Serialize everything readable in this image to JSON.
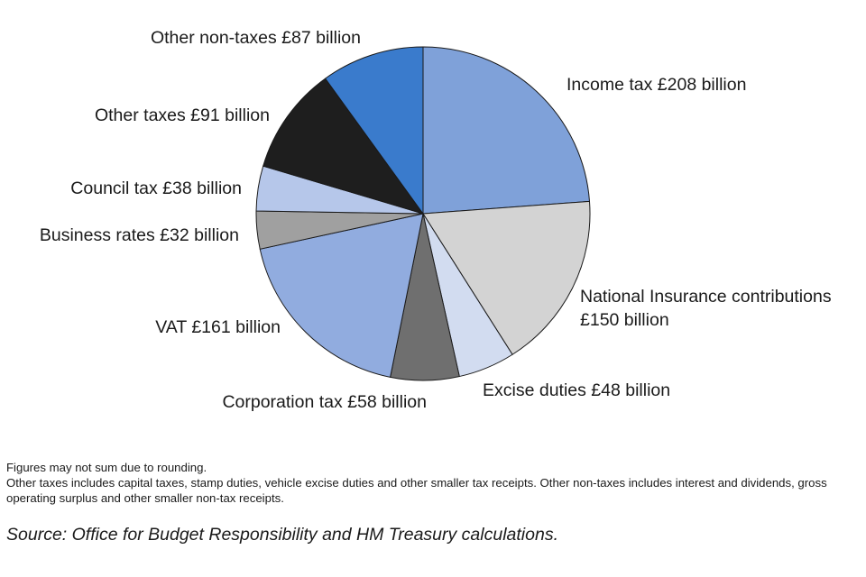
{
  "chart_data": {
    "type": "pie",
    "title": "",
    "unit": "£ billion",
    "slices": [
      {
        "label": "Income tax £208 billion",
        "value": 208,
        "color": "#7fa1d9"
      },
      {
        "label": "National Insurance contributions",
        "label_line2": "£150 billion",
        "value": 150,
        "color": "#d3d3d3"
      },
      {
        "label": "Excise duties £48 billion",
        "value": 48,
        "color": "#d2dcf0"
      },
      {
        "label": "Corporation tax £58 billion",
        "value": 58,
        "color": "#6f6f6f"
      },
      {
        "label": "VAT £161 billion",
        "value": 161,
        "color": "#91acdf"
      },
      {
        "label": "Business rates £32 billion",
        "value": 32,
        "color": "#a0a0a0"
      },
      {
        "label": "Council tax £38 billion",
        "value": 38,
        "color": "#b6c7ea"
      },
      {
        "label": "Other taxes £91 billion",
        "value": 91,
        "color": "#1e1e1e"
      },
      {
        "label": "Other non-taxes £87 billion",
        "value": 87,
        "color": "#3a7bcc"
      }
    ],
    "start_angle": "12 o'clock",
    "direction": "clockwise",
    "legend": "none"
  },
  "notes": {
    "line1": "Figures may not sum due to rounding.",
    "line2": "Other taxes includes capital taxes, stamp duties, vehicle excise duties and other smaller tax receipts. Other non-taxes includes interest and dividends, gross operating surplus and other smaller non-tax receipts."
  },
  "source": "Source: Office for Budget Responsibility and HM Treasury calculations."
}
